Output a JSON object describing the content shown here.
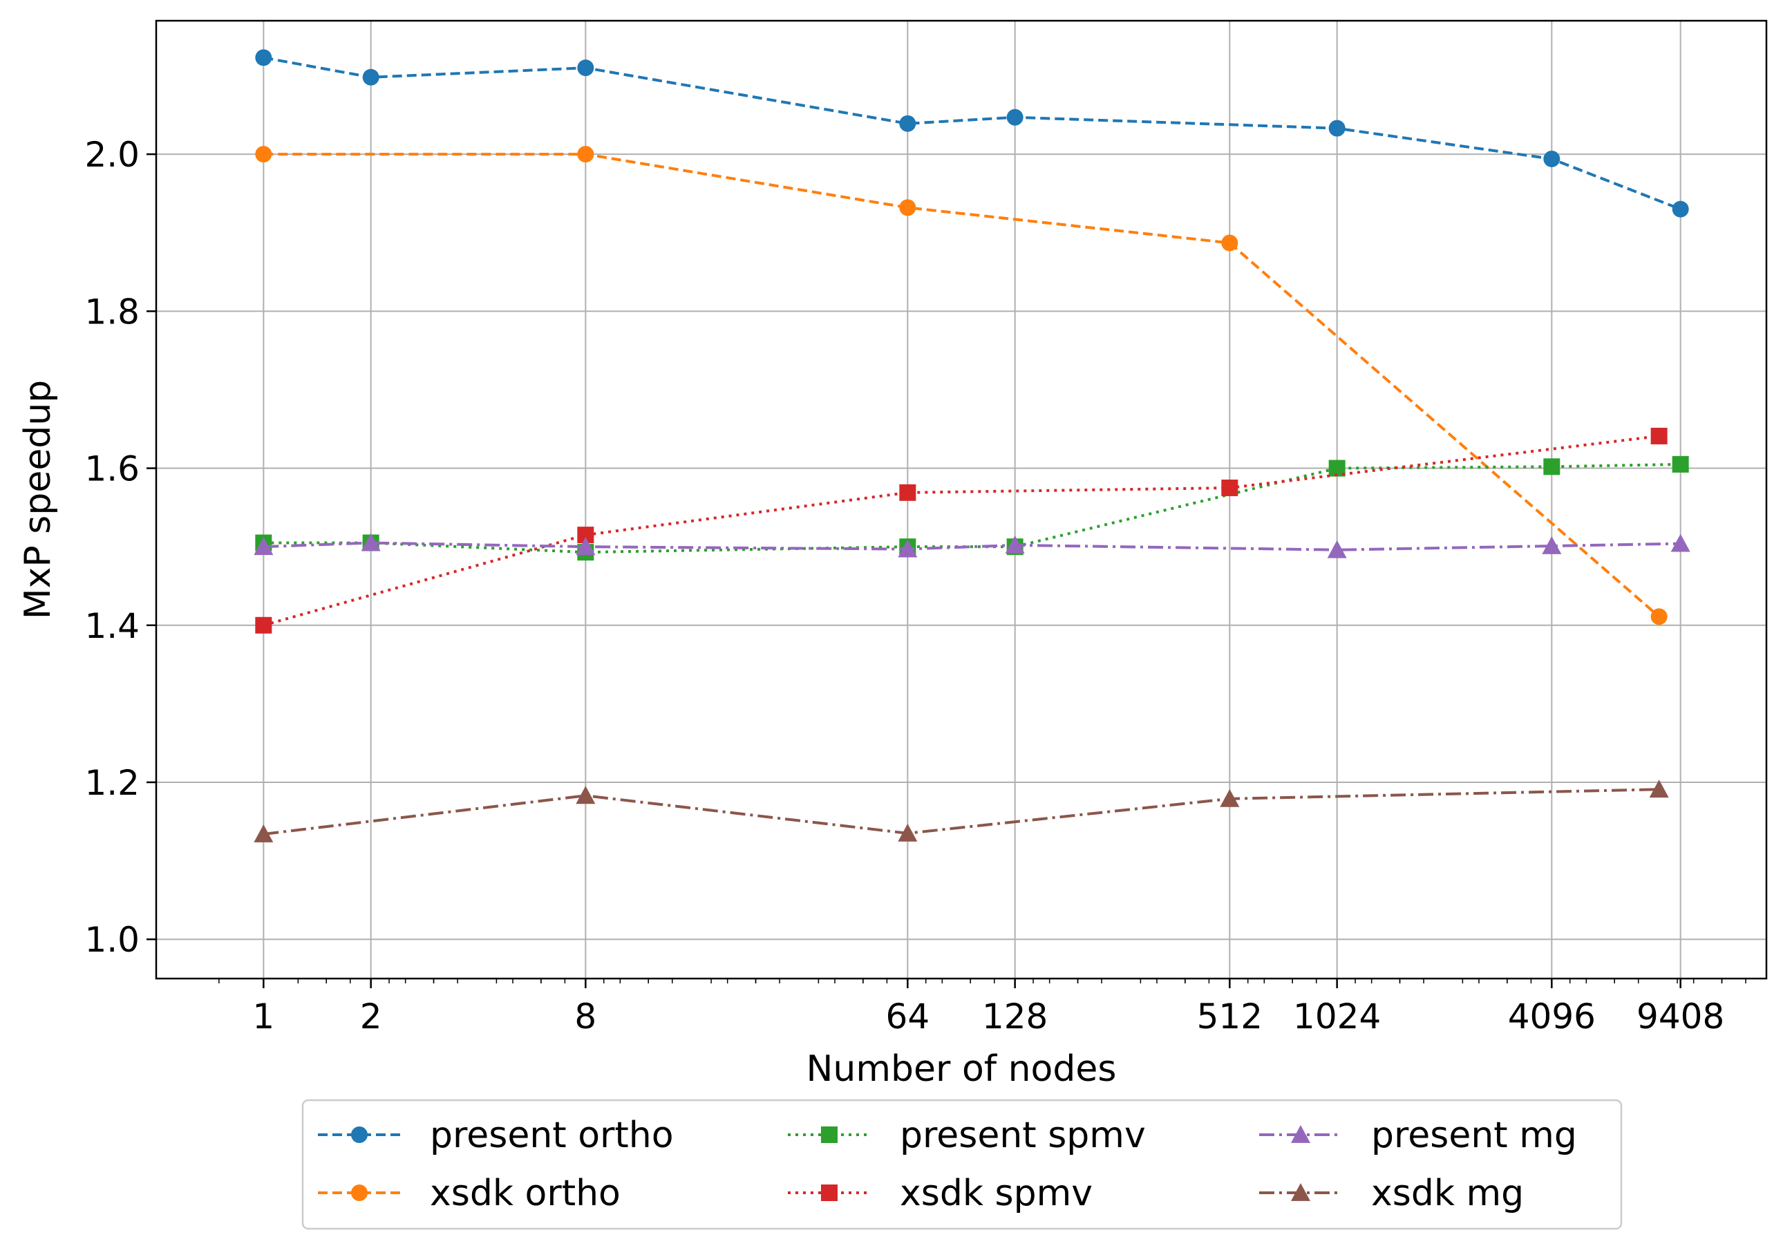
{
  "chart_data": {
    "type": "line",
    "xlabel": "Number of nodes",
    "ylabel": "MxP speedup",
    "xscale": "log2",
    "xlim": [
      0.5,
      16384
    ],
    "ylim": [
      0.95,
      2.17
    ],
    "xticks": [
      1,
      2,
      8,
      64,
      128,
      512,
      1024,
      4096,
      9408
    ],
    "xtick_labels": [
      "1",
      "2",
      "8",
      "64",
      "128",
      "512",
      "1024",
      "4096",
      "9408"
    ],
    "yticks": [
      1.0,
      1.2,
      1.4,
      1.6,
      1.8,
      2.0
    ],
    "ytick_labels": [
      "1.0",
      "1.2",
      "1.4",
      "1.6",
      "1.8",
      "2.0"
    ],
    "grid": true,
    "legend_position": "below plot, centered, 3 columns",
    "series": [
      {
        "name": "present ortho",
        "color": "#1f77b4",
        "marker": "circle",
        "linestyle": "dashed",
        "x": [
          1,
          2,
          8,
          64,
          128,
          1024,
          4096,
          9408
        ],
        "y": [
          2.123,
          2.098,
          2.11,
          2.039,
          2.047,
          2.033,
          1.994,
          1.93
        ]
      },
      {
        "name": "xsdk ortho",
        "color": "#ff7f0e",
        "marker": "circle",
        "linestyle": "dashed",
        "x": [
          1,
          8,
          64,
          512,
          8192
        ],
        "y": [
          2.0,
          2.0,
          1.932,
          1.887,
          1.411
        ]
      },
      {
        "name": "present spmv",
        "color": "#2ca02c",
        "marker": "square",
        "linestyle": "dotted",
        "x": [
          1,
          2,
          8,
          64,
          128,
          1024,
          4096,
          9408
        ],
        "y": [
          1.505,
          1.505,
          1.493,
          1.5,
          1.5,
          1.6,
          1.602,
          1.605
        ]
      },
      {
        "name": "xsdk spmv",
        "color": "#d62728",
        "marker": "square",
        "linestyle": "dotted",
        "x": [
          1,
          8,
          64,
          512,
          8192
        ],
        "y": [
          1.4,
          1.515,
          1.569,
          1.575,
          1.641
        ]
      },
      {
        "name": "present mg",
        "color": "#9467bd",
        "marker": "triangle",
        "linestyle": "dashdot",
        "x": [
          1,
          2,
          8,
          64,
          128,
          1024,
          4096,
          9408
        ],
        "y": [
          1.5,
          1.505,
          1.5,
          1.497,
          1.502,
          1.496,
          1.501,
          1.504
        ]
      },
      {
        "name": "xsdk mg",
        "color": "#8c564b",
        "marker": "triangle",
        "linestyle": "dashdot",
        "x": [
          1,
          8,
          64,
          512,
          8192
        ],
        "y": [
          1.134,
          1.183,
          1.135,
          1.179,
          1.191
        ]
      }
    ]
  }
}
